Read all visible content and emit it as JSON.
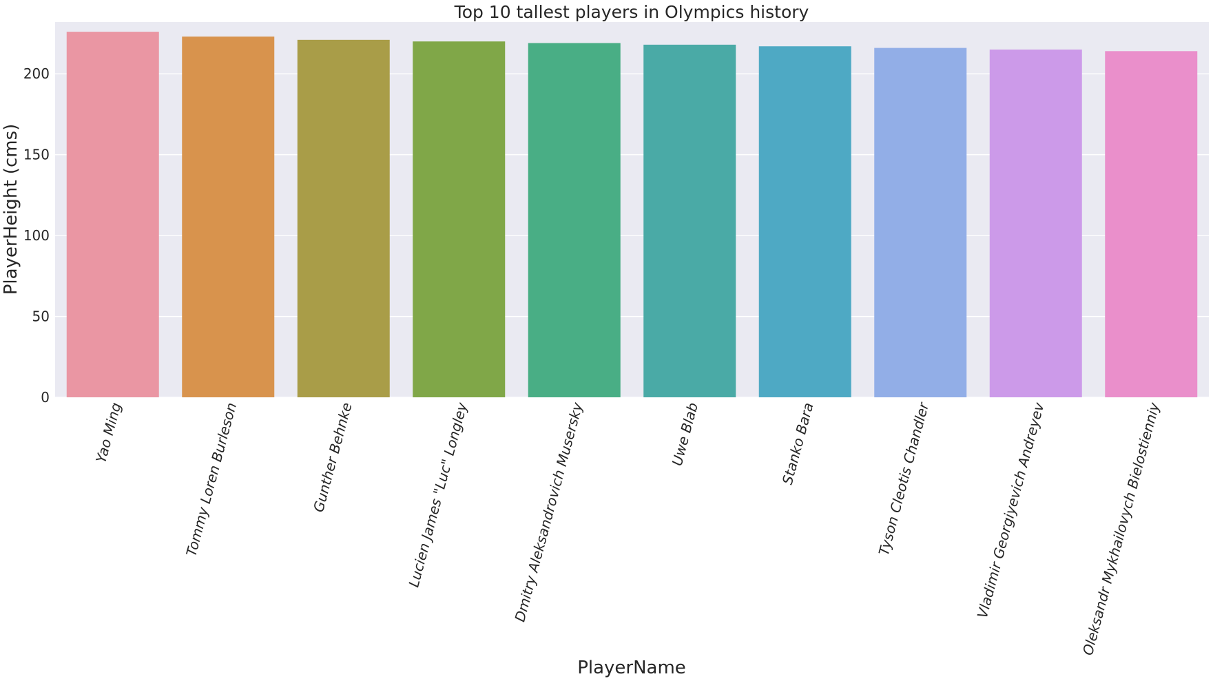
{
  "chart_data": {
    "type": "bar",
    "title": "Top 10 tallest players in Olympics history",
    "xlabel": "PlayerName",
    "ylabel": "PlayerHeight (cms)",
    "categories": [
      "Yao Ming",
      "Tommy Loren Burleson",
      "Gunther Behnke",
      "Lucien James \"Luc\" Longley",
      "Dmitry Aleksandrovich Musersky",
      "Uwe Blab",
      "Stanko Bara",
      "Tyson Cleotis Chandler",
      "Vladimir Georgiyevich Andreyev",
      "Oleksandr Mykhailovych Bielostienniy"
    ],
    "values": [
      226,
      223,
      221,
      220,
      219,
      218,
      217,
      216,
      215,
      214
    ],
    "colors": [
      "#EA96A3",
      "#D8934D",
      "#A99D48",
      "#80A748",
      "#49AE85",
      "#4AAAA6",
      "#4EA9C4",
      "#92AEE7",
      "#CC9AE9",
      "#EA8FCB"
    ],
    "ylim": [
      0,
      232
    ],
    "yticks": [
      0,
      50,
      100,
      150,
      200
    ],
    "grid": true,
    "label_rotation_deg": -75
  }
}
